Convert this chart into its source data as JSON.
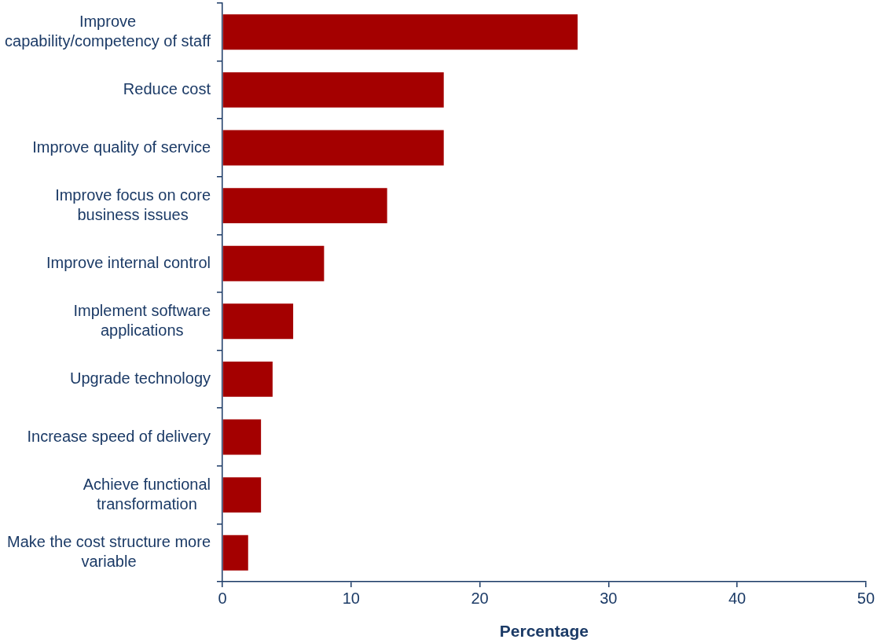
{
  "chart_data": {
    "type": "bar",
    "orientation": "horizontal",
    "xlabel": "Percentage",
    "categories": [
      "Improve capability/competency of staff",
      "Reduce cost",
      "Improve quality of service",
      "Improve focus on core business issues",
      "Improve internal control",
      "Implement software applications",
      "Upgrade technology",
      "Increase speed of delivery",
      "Achieve functional transformation",
      "Make the cost structure more variable"
    ],
    "values": [
      27.6,
      17.2,
      17.2,
      12.8,
      7.9,
      5.5,
      3.9,
      3.0,
      3.0,
      2.0
    ],
    "color": "#a40000",
    "xlim": [
      0,
      50
    ],
    "xticks": [
      0,
      10,
      20,
      30,
      40,
      50
    ]
  }
}
